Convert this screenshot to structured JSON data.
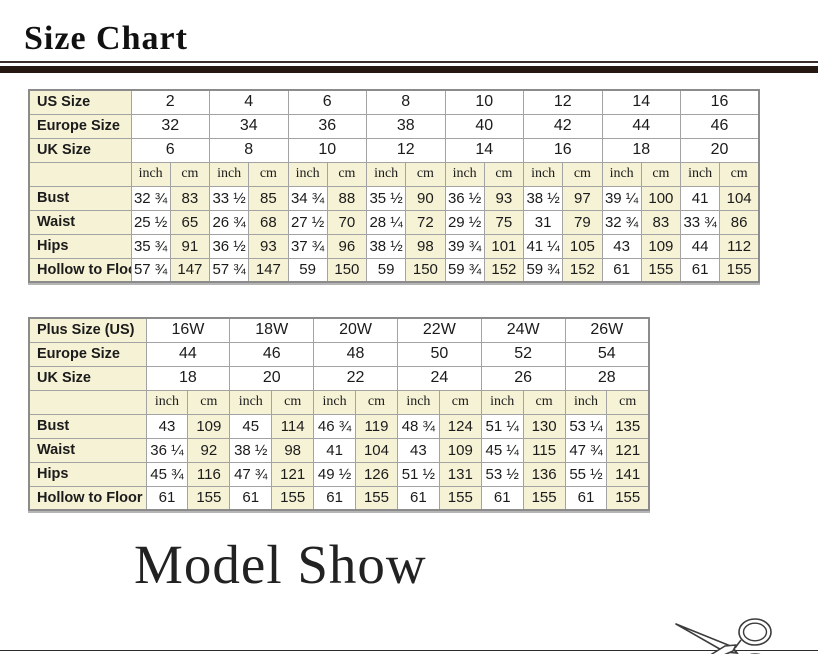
{
  "titles": {
    "size_chart": "Size Chart",
    "model_show": "Model Show"
  },
  "icons": {
    "scissors": "scissors cut-here mark"
  },
  "colors": {
    "cream_cell": "#f6f2d5",
    "table_border": "#a3a3a3",
    "title_bar": "#241811",
    "text": "#1b1b1b"
  },
  "standard_table": {
    "size_rows": [
      {
        "label": "US Size",
        "values": [
          "2",
          "4",
          "6",
          "8",
          "10",
          "12",
          "14",
          "16"
        ]
      },
      {
        "label": "Europe Size",
        "values": [
          "32",
          "34",
          "36",
          "38",
          "40",
          "42",
          "44",
          "46"
        ]
      },
      {
        "label": "UK Size",
        "values": [
          "6",
          "8",
          "10",
          "12",
          "14",
          "16",
          "18",
          "20"
        ]
      }
    ],
    "unit_row": [
      "inch",
      "cm",
      "inch",
      "cm",
      "inch",
      "cm",
      "inch",
      "cm",
      "inch",
      "cm",
      "inch",
      "cm",
      "inch",
      "cm",
      "inch",
      "cm"
    ],
    "measurement_rows": [
      {
        "label": "Bust",
        "values": [
          "32 ¾",
          "83",
          "33 ½",
          "85",
          "34 ¾",
          "88",
          "35 ½",
          "90",
          "36 ½",
          "93",
          "38 ½",
          "97",
          "39 ¼",
          "100",
          "41",
          "104"
        ]
      },
      {
        "label": "Waist",
        "values": [
          "25 ½",
          "65",
          "26 ¾",
          "68",
          "27 ½",
          "70",
          "28 ¼",
          "72",
          "29 ½",
          "75",
          "31",
          "79",
          "32 ¾",
          "83",
          "33 ¾",
          "86"
        ]
      },
      {
        "label": "Hips",
        "values": [
          "35 ¾",
          "91",
          "36 ½",
          "93",
          "37 ¾",
          "96",
          "38 ½",
          "98",
          "39 ¾",
          "101",
          "41 ¼",
          "105",
          "43",
          "109",
          "44",
          "112"
        ]
      },
      {
        "label": "Hollow to Floor",
        "values": [
          "57 ¾",
          "147",
          "57 ¾",
          "147",
          "59",
          "150",
          "59",
          "150",
          "59 ¾",
          "152",
          "59 ¾",
          "152",
          "61",
          "155",
          "61",
          "155"
        ]
      }
    ]
  },
  "plus_table": {
    "size_rows": [
      {
        "label": "Plus Size (US)",
        "values": [
          "16W",
          "18W",
          "20W",
          "22W",
          "24W",
          "26W"
        ]
      },
      {
        "label": "Europe Size",
        "values": [
          "44",
          "46",
          "48",
          "50",
          "52",
          "54"
        ]
      },
      {
        "label": "UK Size",
        "values": [
          "18",
          "20",
          "22",
          "24",
          "26",
          "28"
        ]
      }
    ],
    "unit_row": [
      "inch",
      "cm",
      "inch",
      "cm",
      "inch",
      "cm",
      "inch",
      "cm",
      "inch",
      "cm",
      "inch",
      "cm"
    ],
    "measurement_rows": [
      {
        "label": "Bust",
        "values": [
          "43",
          "109",
          "45",
          "114",
          "46 ¾",
          "119",
          "48 ¾",
          "124",
          "51 ¼",
          "130",
          "53 ¼",
          "135"
        ]
      },
      {
        "label": "Waist",
        "values": [
          "36 ¼",
          "92",
          "38 ½",
          "98",
          "41",
          "104",
          "43",
          "109",
          "45 ¼",
          "115",
          "47 ¾",
          "121"
        ]
      },
      {
        "label": "Hips",
        "values": [
          "45 ¾",
          "116",
          "47 ¾",
          "121",
          "49 ½",
          "126",
          "51 ½",
          "131",
          "53 ½",
          "136",
          "55 ½",
          "141"
        ]
      },
      {
        "label": "Hollow to Floor",
        "values": [
          "61",
          "155",
          "61",
          "155",
          "61",
          "155",
          "61",
          "155",
          "61",
          "155",
          "61",
          "155"
        ]
      }
    ]
  }
}
